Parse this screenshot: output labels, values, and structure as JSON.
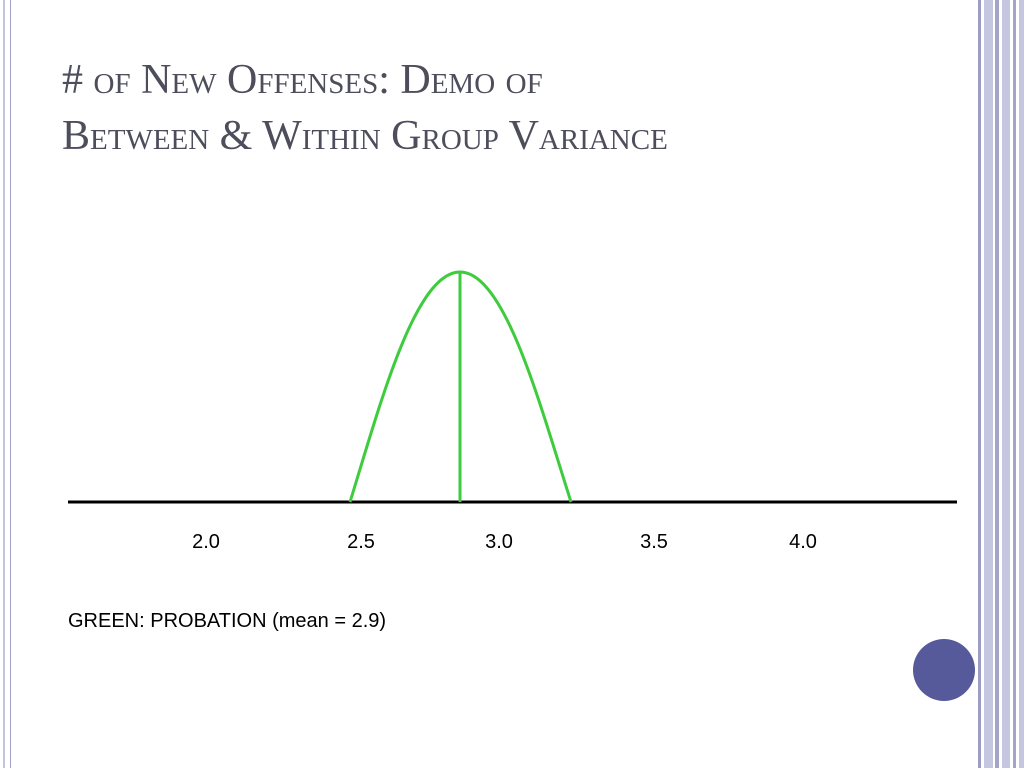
{
  "slide": {
    "title_line1": "# of New Offenses: Demo of",
    "title_line2": "Between & Within Group Variance",
    "legend": "GREEN: PROBATION (mean = 2.9)",
    "axis_labels": [
      "2.0",
      "2.5",
      "3.0",
      "3.5",
      "4.0"
    ],
    "curve_color": "#3ecc3e",
    "accent_color": "#565a9a"
  }
}
